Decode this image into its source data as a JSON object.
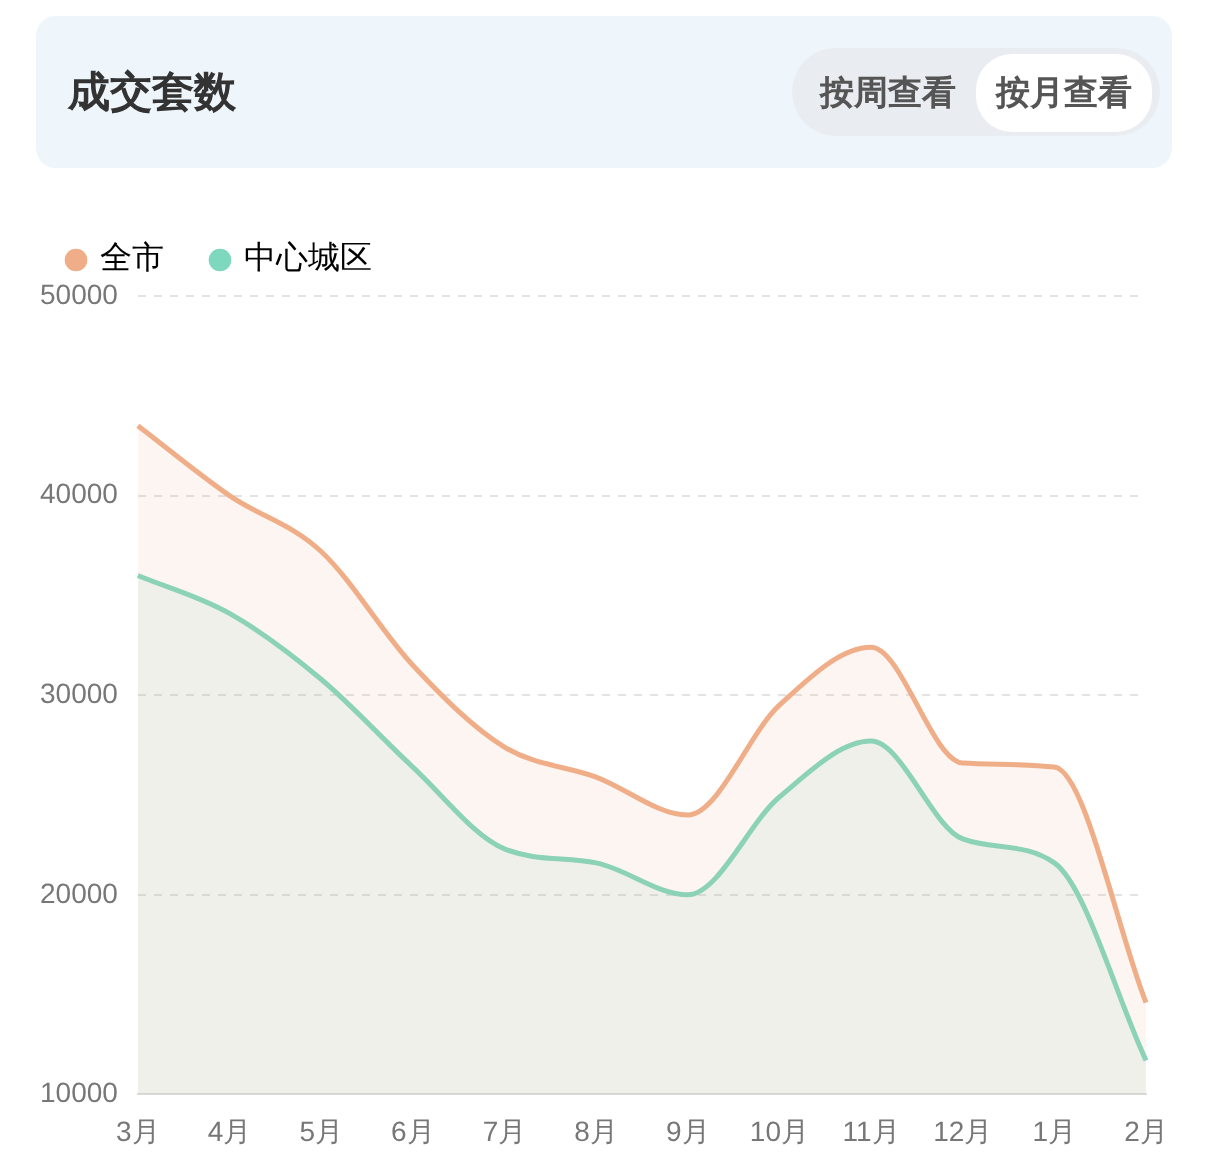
{
  "chart_data": {
    "type": "area",
    "title": "成交套数",
    "annotations": [
      "按周查看",
      "按月查看"
    ],
    "categories": [
      "3月",
      "4月",
      "5月",
      "6月",
      "7月",
      "8月",
      "9月",
      "10月",
      "11月",
      "12月",
      "1月",
      "2月"
    ],
    "series": [
      {
        "name": "全市",
        "color": "#f0ae88",
        "values": [
          43500,
          40000,
          37200,
          31500,
          27400,
          25900,
          24000,
          29500,
          32400,
          26600,
          26400,
          14600
        ]
      },
      {
        "name": "中心城区",
        "color": "#7ed8bd",
        "values": [
          36000,
          34100,
          30800,
          26400,
          22300,
          21600,
          20000,
          24900,
          27700,
          22800,
          21600,
          11700
        ]
      }
    ],
    "ylim": [
      10000,
      50000
    ],
    "yticks": [
      10000,
      20000,
      30000,
      40000,
      50000
    ],
    "grid": "y",
    "legend": "top left",
    "marker": "none",
    "line_style": "solid"
  }
}
